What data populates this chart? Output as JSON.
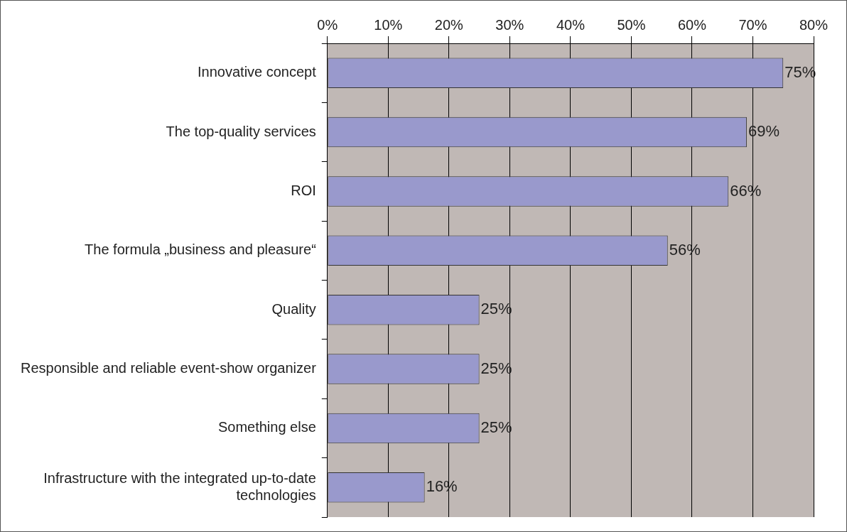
{
  "chart_data": {
    "type": "bar",
    "orientation": "horizontal",
    "categories": [
      "Innovative concept",
      "The top-quality services",
      "ROI",
      "The formula „business and pleasure“",
      "Quality",
      "Responsible and reliable event-show organizer",
      "Something else",
      "Infrastructure with the integrated up-to-date technologies"
    ],
    "values": [
      75,
      69,
      66,
      56,
      25,
      25,
      25,
      16
    ],
    "value_labels": [
      "75%",
      "69%",
      "66%",
      "56%",
      "25%",
      "25%",
      "25%",
      "16%"
    ],
    "color": "#9999cc",
    "xlim": [
      0,
      80
    ],
    "xticks": [
      {
        "value": 0,
        "label": "0%"
      },
      {
        "value": 10,
        "label": "10%"
      },
      {
        "value": 20,
        "label": "20%"
      },
      {
        "value": 30,
        "label": "30%"
      },
      {
        "value": 40,
        "label": "40%"
      },
      {
        "value": 50,
        "label": "50%"
      },
      {
        "value": 60,
        "label": "60%"
      },
      {
        "value": 70,
        "label": "70%"
      },
      {
        "value": 80,
        "label": "80%"
      }
    ],
    "grid": "x",
    "legend": false
  }
}
